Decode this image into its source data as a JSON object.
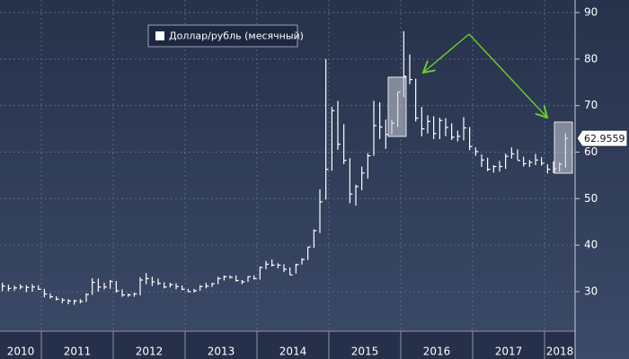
{
  "chart_data": {
    "type": "ohlc",
    "x": [
      2010.458,
      2010.542,
      2010.625,
      2010.708,
      2010.792,
      2010.875,
      2010.958,
      2011.042,
      2011.125,
      2011.208,
      2011.292,
      2011.375,
      2011.458,
      2011.542,
      2011.625,
      2011.708,
      2011.792,
      2011.875,
      2011.958,
      2012.042,
      2012.125,
      2012.208,
      2012.292,
      2012.375,
      2012.458,
      2012.542,
      2012.625,
      2012.708,
      2012.792,
      2012.875,
      2012.958,
      2013.042,
      2013.125,
      2013.208,
      2013.292,
      2013.375,
      2013.458,
      2013.542,
      2013.625,
      2013.708,
      2013.792,
      2013.875,
      2013.958,
      2014.042,
      2014.125,
      2014.208,
      2014.292,
      2014.375,
      2014.458,
      2014.542,
      2014.625,
      2014.708,
      2014.792,
      2014.875,
      2014.958,
      2015.042,
      2015.125,
      2015.208,
      2015.292,
      2015.375,
      2015.458,
      2015.542,
      2015.625,
      2015.708,
      2015.792,
      2015.875,
      2015.958,
      2016.042,
      2016.125,
      2016.208,
      2016.292,
      2016.375,
      2016.458,
      2016.542,
      2016.625,
      2016.708,
      2016.792,
      2016.875,
      2016.958,
      2017.042,
      2017.125,
      2017.208,
      2017.292,
      2017.375,
      2017.458,
      2017.542,
      2017.625,
      2017.708,
      2017.792,
      2017.875,
      2017.958,
      2018.042,
      2018.125,
      2018.208,
      2018.292
    ],
    "series": [
      {
        "name": "Доллар/рубль (месячный)",
        "color": "#ffffff",
        "values": [
          31.2,
          30.7,
          30.8,
          31.0,
          30.9,
          31.0,
          30.5,
          29.5,
          28.9,
          28.4,
          28.2,
          28.0,
          28.0,
          27.9,
          29.4,
          32.0,
          31.0,
          31.0,
          32.2,
          30.2,
          29.3,
          29.3,
          29.5,
          32.5,
          32.8,
          32.1,
          31.8,
          31.0,
          31.5,
          31.1,
          30.5,
          30.0,
          30.2,
          31.1,
          31.2,
          31.7,
          32.8,
          33.2,
          33.1,
          32.4,
          32.1,
          33.2,
          32.8,
          35.2,
          35.9,
          35.7,
          35.7,
          34.8,
          33.6,
          35.8,
          36.9,
          39.6,
          43.1,
          49.3,
          56.3,
          68.9,
          61.7,
          58.2,
          51.0,
          52.6,
          55.5,
          59.2,
          65.7,
          65.4,
          63.8,
          66.2,
          72.9,
          76.3,
          75.6,
          67.3,
          65.0,
          66.6,
          64.0,
          66.8,
          65.3,
          63.2,
          63.4,
          65.2,
          61.2,
          60.1,
          58.3,
          56.3,
          56.9,
          56.9,
          59.1,
          59.6,
          58.2,
          57.5,
          57.8,
          58.3,
          57.6,
          56.3,
          56.4,
          57.4,
          62.9559
        ],
        "high": [
          31.9,
          31.5,
          31.3,
          31.6,
          31.4,
          31.6,
          31.4,
          30.6,
          29.6,
          29.0,
          28.6,
          28.4,
          28.3,
          28.4,
          29.6,
          32.9,
          32.8,
          31.9,
          32.5,
          32.3,
          30.5,
          29.6,
          29.8,
          33.1,
          34.0,
          33.2,
          32.8,
          32.0,
          31.9,
          31.8,
          31.3,
          30.6,
          30.6,
          31.4,
          31.9,
          31.9,
          33.2,
          33.5,
          33.5,
          33.5,
          32.5,
          33.3,
          33.5,
          35.4,
          36.6,
          36.9,
          36.1,
          35.9,
          35.2,
          36.0,
          37.2,
          39.6,
          43.4,
          52.0,
          80.0,
          69.7,
          71.0,
          66.0,
          58.7,
          53.0,
          56.9,
          59.8,
          71.0,
          70.7,
          67.0,
          66.9,
          72.9,
          86.0,
          81.0,
          75.8,
          69.7,
          67.9,
          67.7,
          67.4,
          67.3,
          66.2,
          64.6,
          67.5,
          65.4,
          61.0,
          59.5,
          58.8,
          57.2,
          58.1,
          59.7,
          61.0,
          60.6,
          59.0,
          58.3,
          59.6,
          58.9,
          57.4,
          58.0,
          57.8,
          64.0
        ],
        "low": [
          30.1,
          30.1,
          30.2,
          30.5,
          29.9,
          30.0,
          30.4,
          28.8,
          28.5,
          28.1,
          27.5,
          27.3,
          27.2,
          27.5,
          27.8,
          29.3,
          30.0,
          30.5,
          30.6,
          29.8,
          28.9,
          28.9,
          28.9,
          29.2,
          31.6,
          31.2,
          31.4,
          30.7,
          30.9,
          30.5,
          30.3,
          29.9,
          29.8,
          30.2,
          30.7,
          31.0,
          31.6,
          32.4,
          32.8,
          32.2,
          31.6,
          32.1,
          32.6,
          32.6,
          34.8,
          35.4,
          35.0,
          34.2,
          33.6,
          33.9,
          35.8,
          36.8,
          39.4,
          42.6,
          49.8,
          56.0,
          60.5,
          57.4,
          49.0,
          48.5,
          51.8,
          54.3,
          59.2,
          62.8,
          60.7,
          63.8,
          65.4,
          71.8,
          74.6,
          66.6,
          63.4,
          64.0,
          62.8,
          62.8,
          63.4,
          62.6,
          62.3,
          62.5,
          60.4,
          59.2,
          56.8,
          55.9,
          55.6,
          55.8,
          56.4,
          58.6,
          58.3,
          56.9,
          56.8,
          57.2,
          57.1,
          55.4,
          55.5,
          55.8,
          56.6
        ]
      }
    ],
    "xlim": [
      2010.425,
      2018.425
    ],
    "xticks": [
      2010,
      2011,
      2012,
      2013,
      2014,
      2015,
      2016,
      2017,
      2018
    ],
    "ylim": [
      21.5,
      92.7
    ],
    "yticks": [
      30,
      40,
      50,
      60,
      70,
      80,
      90
    ],
    "grid": true
  }
}
